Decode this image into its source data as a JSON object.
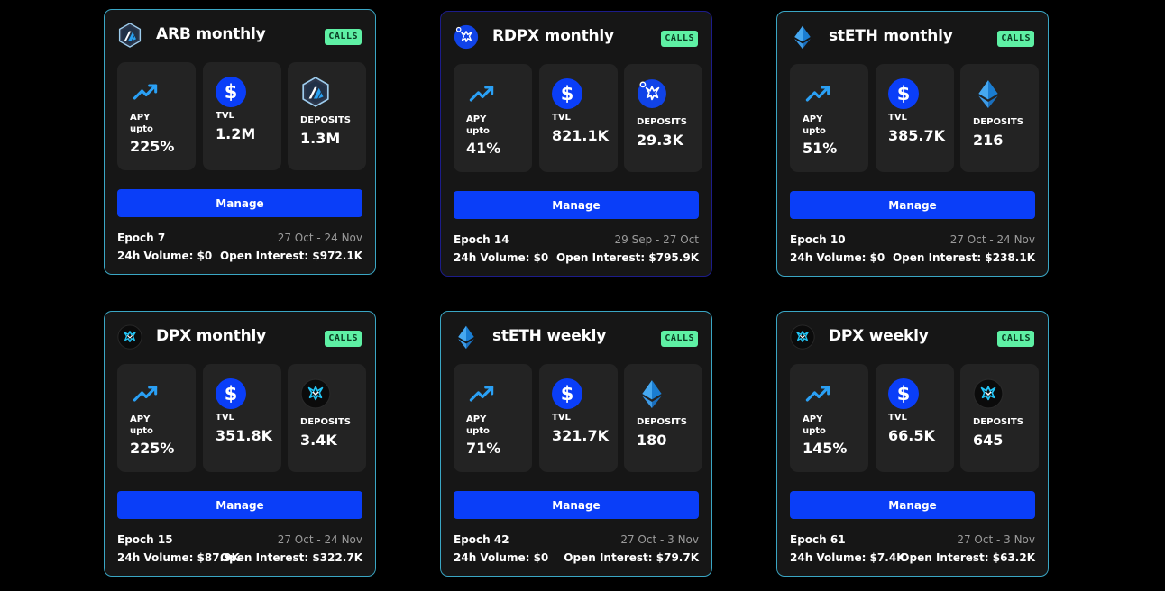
{
  "colors": {
    "accent": "#0a3ef8",
    "badge": "#5ef0a4",
    "card_border": "#3aa6c4",
    "trend": "#2aa0f5"
  },
  "labels": {
    "apy": "APY",
    "upto": "upto",
    "tvl": "TVL",
    "deposits": "DEPOSITS",
    "manage": "Manage",
    "calls": "CALLS",
    "currency_symbol": "$"
  },
  "cards": [
    {
      "title": "ARB monthly",
      "icon": "arb-icon",
      "apy": "225%",
      "tvl": "1.2M",
      "deposits": "1.3M",
      "epoch": "Epoch 7",
      "dates": "27 Oct - 24 Nov",
      "volume": "24h Volume: $0",
      "open_interest": "Open Interest: $972.1K"
    },
    {
      "title": "RDPX monthly",
      "icon": "rdpx-icon",
      "apy": "41%",
      "tvl": "821.1K",
      "deposits": "29.3K",
      "epoch": "Epoch 14",
      "dates": "29 Sep - 27 Oct",
      "volume": "24h Volume: $0",
      "open_interest": "Open Interest: $795.9K"
    },
    {
      "title": "stETH monthly",
      "icon": "steth-icon",
      "apy": "51%",
      "tvl": "385.7K",
      "deposits": "216",
      "epoch": "Epoch 10",
      "dates": "27 Oct - 24 Nov",
      "volume": "24h Volume: $0",
      "open_interest": "Open Interest: $238.1K"
    },
    {
      "title": "DPX monthly",
      "icon": "dpx-icon",
      "apy": "225%",
      "tvl": "351.8K",
      "deposits": "3.4K",
      "epoch": "Epoch 15",
      "dates": "27 Oct - 24 Nov",
      "volume": "24h Volume: $87.9K",
      "open_interest": "Open Interest: $322.7K"
    },
    {
      "title": "stETH weekly",
      "icon": "steth-icon",
      "apy": "71%",
      "tvl": "321.7K",
      "deposits": "180",
      "epoch": "Epoch 42",
      "dates": "27 Oct - 3 Nov",
      "volume": "24h Volume: $0",
      "open_interest": "Open Interest: $79.7K"
    },
    {
      "title": "DPX weekly",
      "icon": "dpx-icon",
      "apy": "145%",
      "tvl": "66.5K",
      "deposits": "645",
      "epoch": "Epoch 61",
      "dates": "27 Oct - 3 Nov",
      "volume": "24h Volume: $7.4K",
      "open_interest": "Open Interest: $63.2K"
    }
  ]
}
